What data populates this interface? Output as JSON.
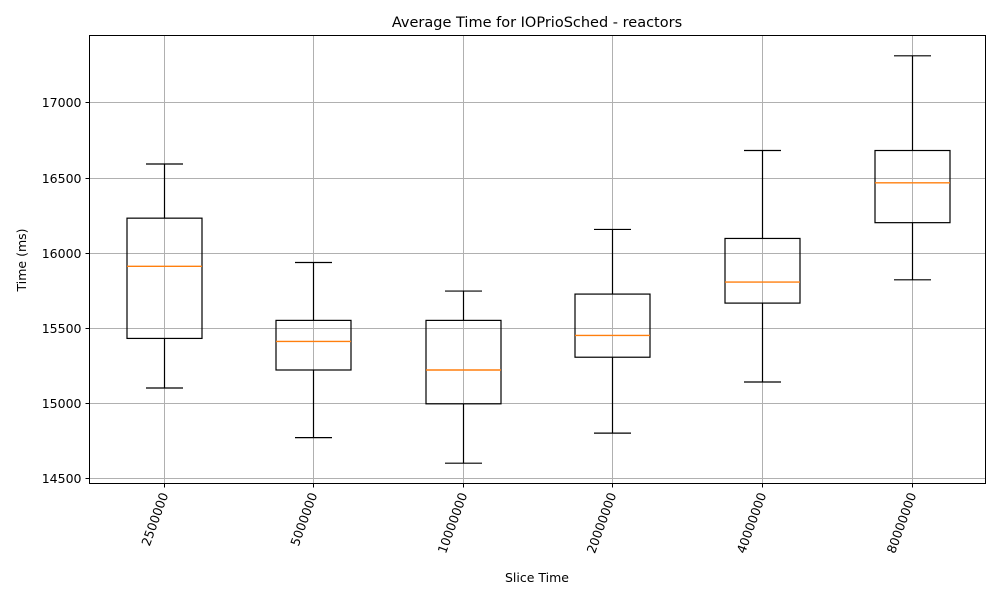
{
  "chart_data": {
    "type": "box",
    "title": "Average Time for IOPrioSched - reactors",
    "xlabel": "Slice Time",
    "ylabel": "Time (ms)",
    "categories": [
      "2500000",
      "5000000",
      "10000000",
      "20000000",
      "40000000",
      "80000000"
    ],
    "boxes": [
      {
        "whisker_low": 15100,
        "q1": 15430,
        "median": 15910,
        "q3": 16230,
        "whisker_high": 16590
      },
      {
        "whisker_low": 14770,
        "q1": 15220,
        "median": 15410,
        "q3": 15550,
        "whisker_high": 15935
      },
      {
        "whisker_low": 14600,
        "q1": 14995,
        "median": 15220,
        "q3": 15550,
        "whisker_high": 15745
      },
      {
        "whisker_low": 14800,
        "q1": 15305,
        "median": 15450,
        "q3": 15725,
        "whisker_high": 16155
      },
      {
        "whisker_low": 15140,
        "q1": 15665,
        "median": 15805,
        "q3": 16095,
        "whisker_high": 16680
      },
      {
        "whisker_low": 15820,
        "q1": 16200,
        "median": 16465,
        "q3": 16680,
        "whisker_high": 17310
      }
    ],
    "yticks": [
      14500,
      15000,
      15500,
      16000,
      16500,
      17000
    ],
    "ylim": [
      14465,
      17445
    ],
    "grid": true,
    "x_tick_rotation_deg": -70,
    "colors": {
      "box": "#000000",
      "median": "#ff7f0e",
      "grid": "#b0b0b0"
    }
  }
}
